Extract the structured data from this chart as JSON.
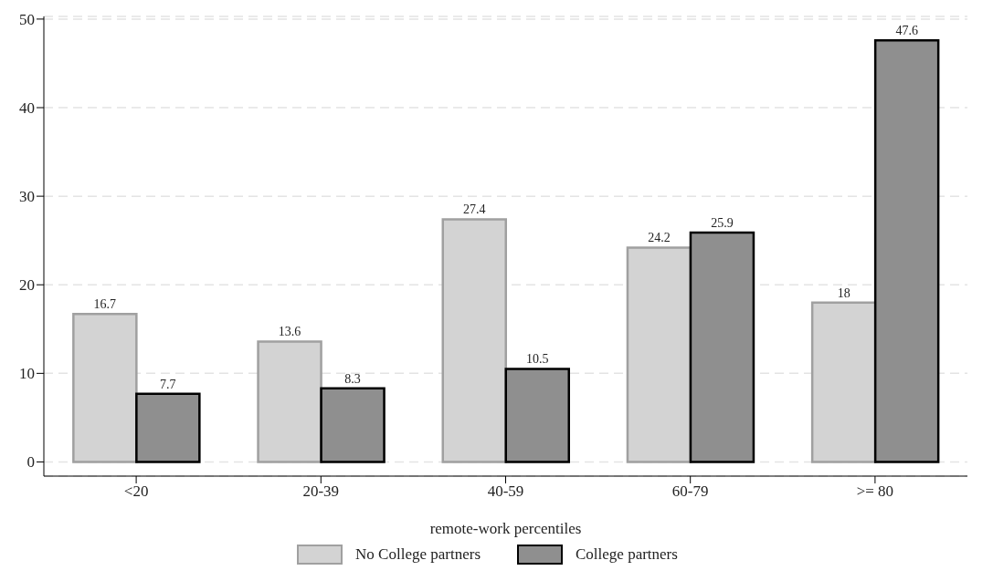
{
  "chart_data": {
    "type": "bar",
    "xlabel": "remote-work percentiles",
    "categories": [
      "<20",
      "20-39",
      "40-59",
      "60-79",
      ">= 80"
    ],
    "series": [
      {
        "name": "No College partners",
        "color": "#d3d3d3",
        "values": [
          16.7,
          13.6,
          27.4,
          24.2,
          18
        ]
      },
      {
        "name": "College partners",
        "color": "#8f8f8f",
        "values": [
          7.7,
          8.3,
          10.5,
          25.9,
          47.6
        ]
      }
    ],
    "ylim": [
      -1.6,
      50.3
    ],
    "yticks": [
      0,
      10,
      20,
      30,
      40,
      50
    ],
    "grid": "y",
    "legend": "bottom",
    "data_labels": true
  }
}
